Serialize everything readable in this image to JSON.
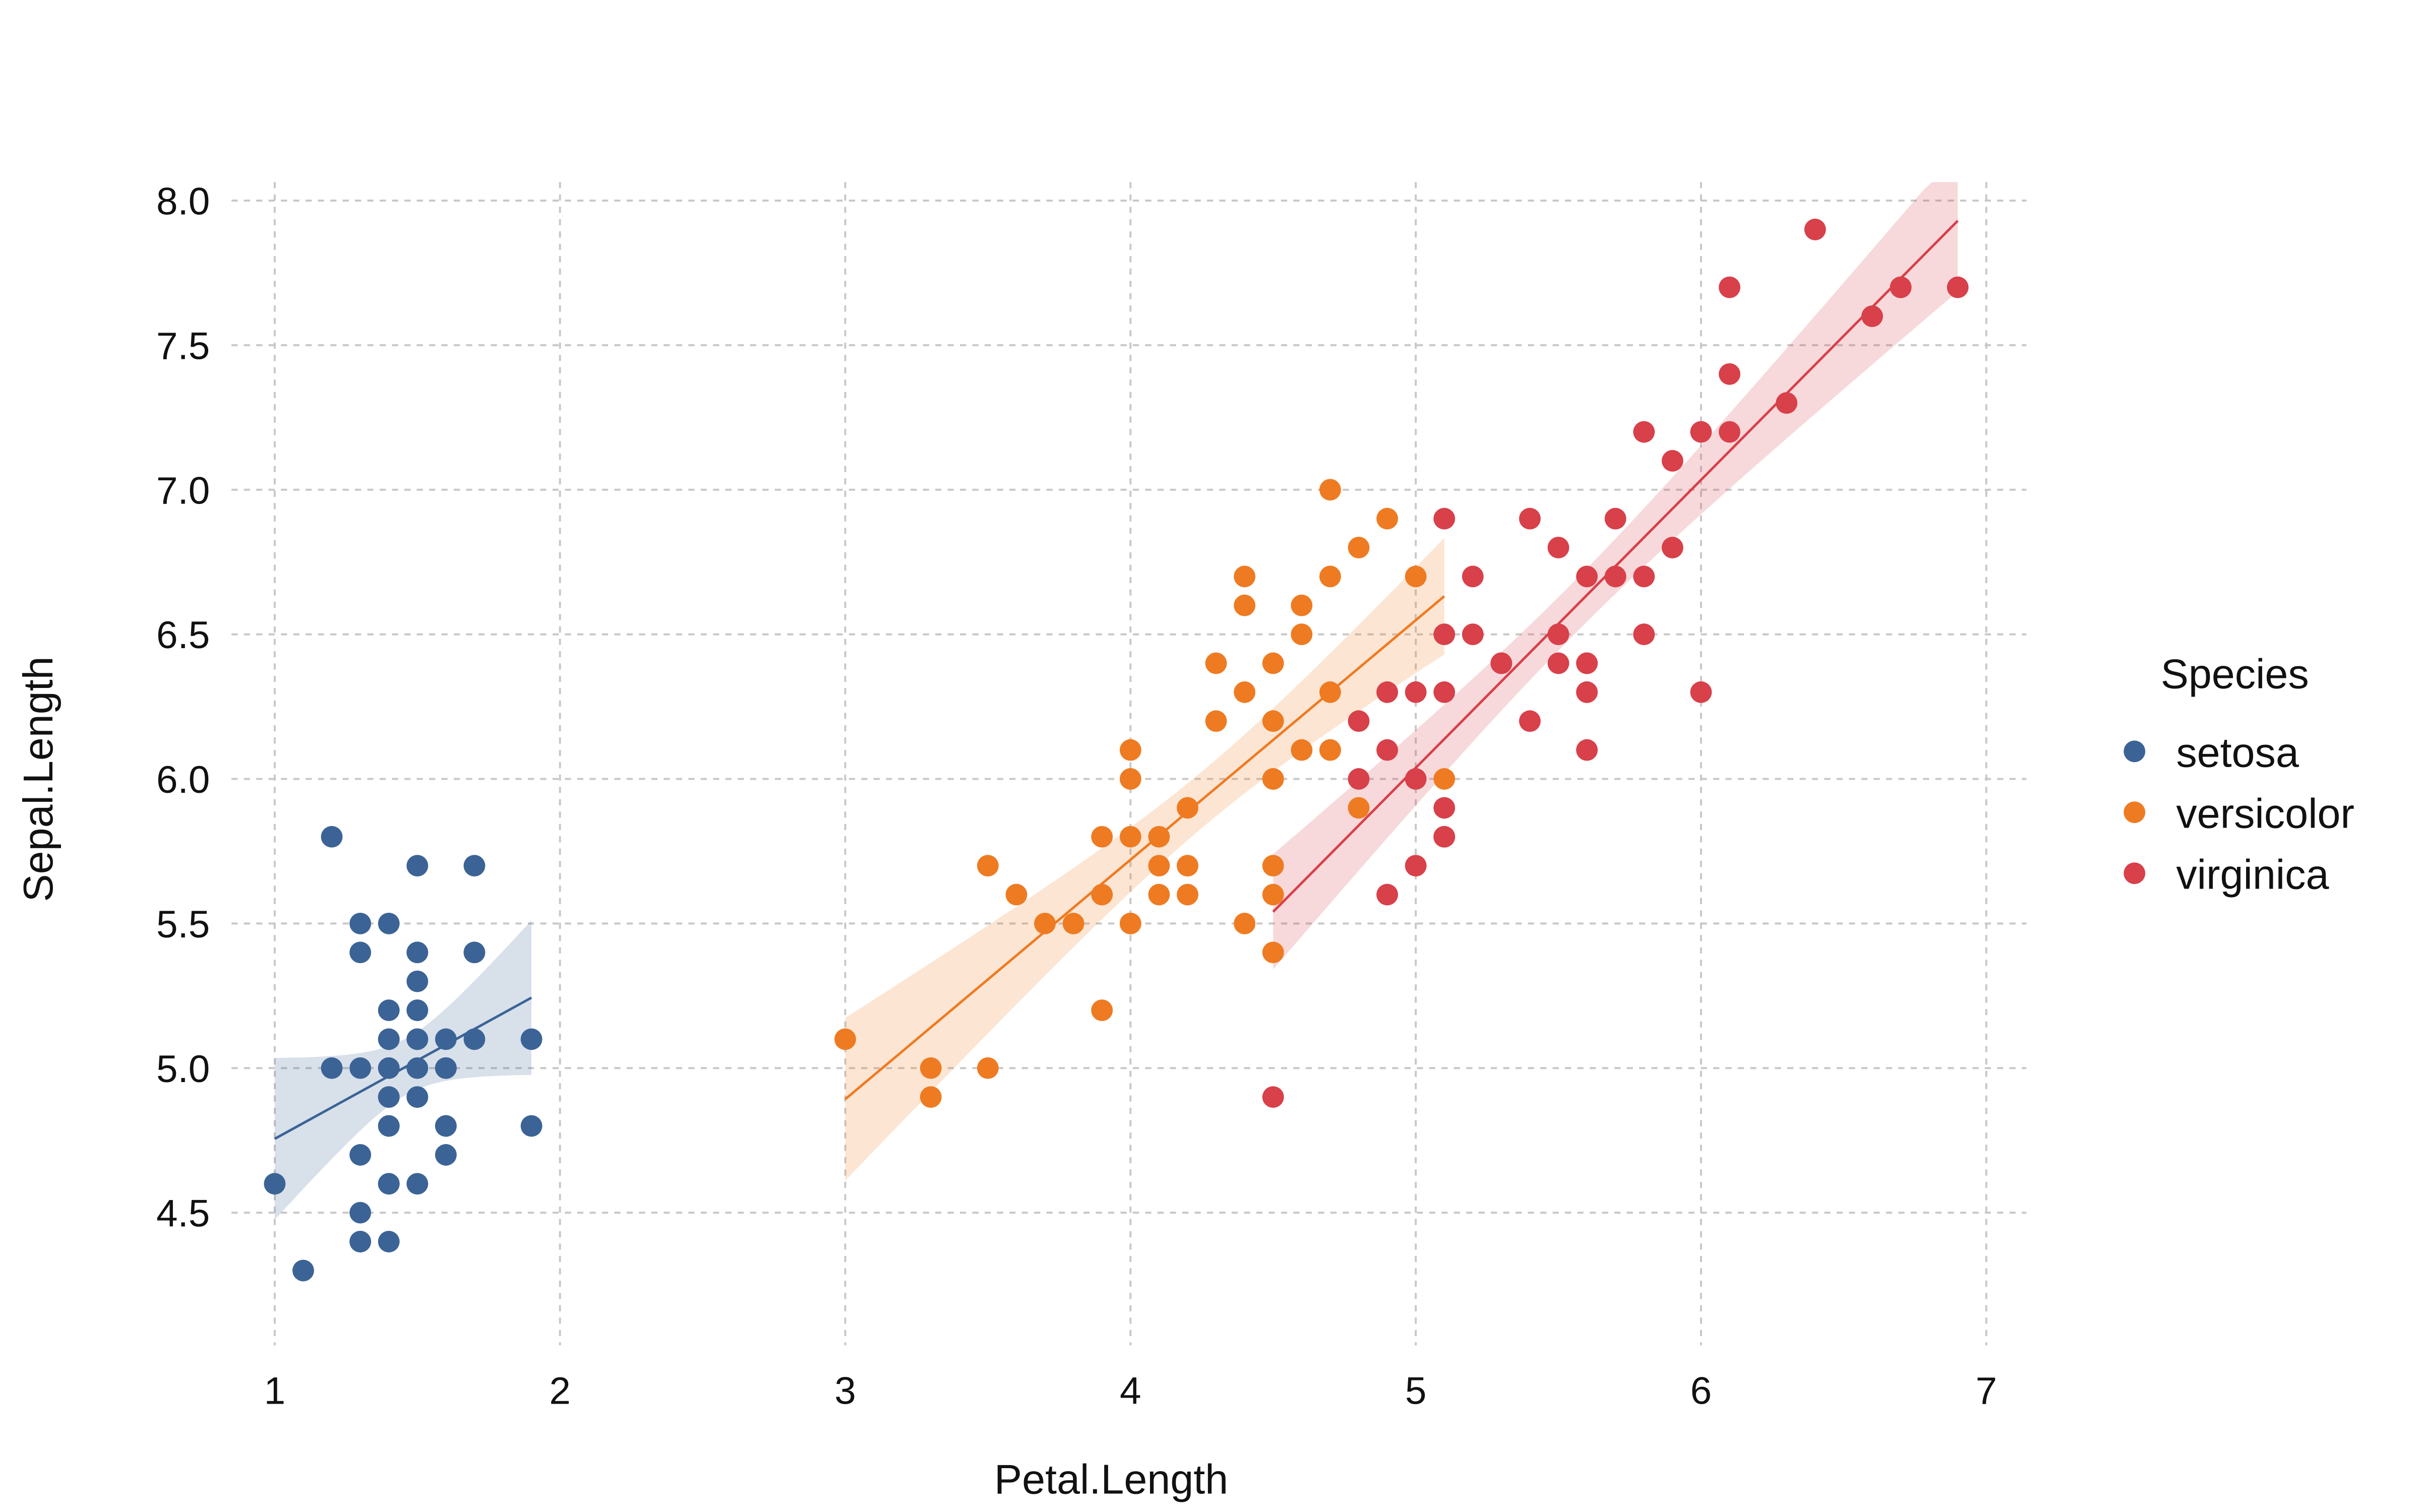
{
  "chart_data": {
    "type": "scatter",
    "xlabel": "Petal.Length",
    "ylabel": "Sepal.Length",
    "xlim": [
      1,
      7
    ],
    "ylim": [
      4.3,
      8.0
    ],
    "xticks": [
      "1",
      "2",
      "3",
      "4",
      "5",
      "6",
      "7"
    ],
    "yticks": [
      "4.5",
      "5.0",
      "5.5",
      "6.0",
      "6.5",
      "7.0",
      "7.5",
      "8.0"
    ],
    "grid": true,
    "legend": {
      "title": "Species",
      "position": "right"
    },
    "overlay": "linear regression line with 95% confidence band per species",
    "series": [
      {
        "name": "setosa",
        "color": "#3B6396",
        "points": [
          [
            1.4,
            5.1
          ],
          [
            1.4,
            4.9
          ],
          [
            1.3,
            4.7
          ],
          [
            1.5,
            4.6
          ],
          [
            1.4,
            5.0
          ],
          [
            1.7,
            5.4
          ],
          [
            1.4,
            4.6
          ],
          [
            1.5,
            5.0
          ],
          [
            1.4,
            4.4
          ],
          [
            1.5,
            4.9
          ],
          [
            1.5,
            5.4
          ],
          [
            1.6,
            4.8
          ],
          [
            1.4,
            4.8
          ],
          [
            1.1,
            4.3
          ],
          [
            1.2,
            5.8
          ],
          [
            1.5,
            5.7
          ],
          [
            1.3,
            5.4
          ],
          [
            1.4,
            5.1
          ],
          [
            1.7,
            5.7
          ],
          [
            1.5,
            5.1
          ],
          [
            1.7,
            5.4
          ],
          [
            1.5,
            5.1
          ],
          [
            1.0,
            4.6
          ],
          [
            1.7,
            5.1
          ],
          [
            1.9,
            4.8
          ],
          [
            1.6,
            5.0
          ],
          [
            1.6,
            5.0
          ],
          [
            1.5,
            5.2
          ],
          [
            1.4,
            5.2
          ],
          [
            1.6,
            4.7
          ],
          [
            1.6,
            4.8
          ],
          [
            1.5,
            5.4
          ],
          [
            1.5,
            5.2
          ],
          [
            1.4,
            5.5
          ],
          [
            1.5,
            4.9
          ],
          [
            1.2,
            5.0
          ],
          [
            1.3,
            5.5
          ],
          [
            1.4,
            4.9
          ],
          [
            1.3,
            4.4
          ],
          [
            1.5,
            5.1
          ],
          [
            1.3,
            5.0
          ],
          [
            1.3,
            4.5
          ],
          [
            1.3,
            4.4
          ],
          [
            1.6,
            5.0
          ],
          [
            1.9,
            5.1
          ],
          [
            1.4,
            4.8
          ],
          [
            1.6,
            5.1
          ],
          [
            1.4,
            4.6
          ],
          [
            1.5,
            5.3
          ],
          [
            1.4,
            5.0
          ]
        ]
      },
      {
        "name": "versicolor",
        "color": "#EE7B22",
        "points": [
          [
            4.7,
            7.0
          ],
          [
            4.5,
            6.4
          ],
          [
            4.9,
            6.9
          ],
          [
            4.0,
            5.5
          ],
          [
            4.6,
            6.5
          ],
          [
            4.5,
            5.7
          ],
          [
            4.7,
            6.3
          ],
          [
            3.3,
            4.9
          ],
          [
            4.6,
            6.6
          ],
          [
            3.9,
            5.2
          ],
          [
            3.5,
            5.0
          ],
          [
            4.2,
            5.9
          ],
          [
            4.0,
            6.0
          ],
          [
            4.7,
            6.1
          ],
          [
            3.6,
            5.6
          ],
          [
            4.4,
            6.7
          ],
          [
            4.5,
            5.6
          ],
          [
            4.1,
            5.8
          ],
          [
            4.5,
            6.2
          ],
          [
            3.9,
            5.6
          ],
          [
            4.8,
            5.9
          ],
          [
            4.0,
            6.1
          ],
          [
            4.9,
            6.3
          ],
          [
            4.7,
            6.1
          ],
          [
            4.3,
            6.4
          ],
          [
            4.4,
            6.6
          ],
          [
            4.8,
            6.8
          ],
          [
            5.0,
            6.7
          ],
          [
            4.5,
            6.0
          ],
          [
            3.5,
            5.7
          ],
          [
            3.8,
            5.5
          ],
          [
            3.7,
            5.5
          ],
          [
            3.9,
            5.8
          ],
          [
            5.1,
            6.0
          ],
          [
            4.5,
            5.4
          ],
          [
            4.5,
            6.0
          ],
          [
            4.7,
            6.7
          ],
          [
            4.4,
            6.3
          ],
          [
            4.1,
            5.6
          ],
          [
            4.0,
            5.5
          ],
          [
            4.4,
            5.5
          ],
          [
            4.6,
            6.1
          ],
          [
            4.0,
            5.8
          ],
          [
            3.3,
            5.0
          ],
          [
            4.2,
            5.6
          ],
          [
            4.2,
            5.7
          ],
          [
            4.2,
            5.7
          ],
          [
            4.3,
            6.2
          ],
          [
            3.0,
            5.1
          ],
          [
            4.1,
            5.7
          ]
        ]
      },
      {
        "name": "virginica",
        "color": "#D8404A",
        "points": [
          [
            6.0,
            6.3
          ],
          [
            5.1,
            5.8
          ],
          [
            5.9,
            7.1
          ],
          [
            5.6,
            6.3
          ],
          [
            5.8,
            6.5
          ],
          [
            6.6,
            7.6
          ],
          [
            4.5,
            4.9
          ],
          [
            6.3,
            7.3
          ],
          [
            5.8,
            6.7
          ],
          [
            6.1,
            7.2
          ],
          [
            5.1,
            6.5
          ],
          [
            5.3,
            6.4
          ],
          [
            5.5,
            6.8
          ],
          [
            5.0,
            5.7
          ],
          [
            5.1,
            5.8
          ],
          [
            5.3,
            6.4
          ],
          [
            5.5,
            6.5
          ],
          [
            6.7,
            7.7
          ],
          [
            6.9,
            7.7
          ],
          [
            5.0,
            6.0
          ],
          [
            5.7,
            6.9
          ],
          [
            4.9,
            5.6
          ],
          [
            6.7,
            7.7
          ],
          [
            4.9,
            6.3
          ],
          [
            5.7,
            6.7
          ],
          [
            6.0,
            7.2
          ],
          [
            4.8,
            6.2
          ],
          [
            4.9,
            6.1
          ],
          [
            5.6,
            6.4
          ],
          [
            5.8,
            7.2
          ],
          [
            6.1,
            7.4
          ],
          [
            6.4,
            7.9
          ],
          [
            5.6,
            6.4
          ],
          [
            5.1,
            6.3
          ],
          [
            5.6,
            6.1
          ],
          [
            6.1,
            7.7
          ],
          [
            5.6,
            6.3
          ],
          [
            5.5,
            6.4
          ],
          [
            4.8,
            6.0
          ],
          [
            5.4,
            6.9
          ],
          [
            5.6,
            6.7
          ],
          [
            5.1,
            6.9
          ],
          [
            5.1,
            5.8
          ],
          [
            5.9,
            6.8
          ],
          [
            5.7,
            6.7
          ],
          [
            5.2,
            6.7
          ],
          [
            5.0,
            6.3
          ],
          [
            5.2,
            6.5
          ],
          [
            5.4,
            6.2
          ],
          [
            5.1,
            5.9
          ]
        ]
      }
    ]
  }
}
